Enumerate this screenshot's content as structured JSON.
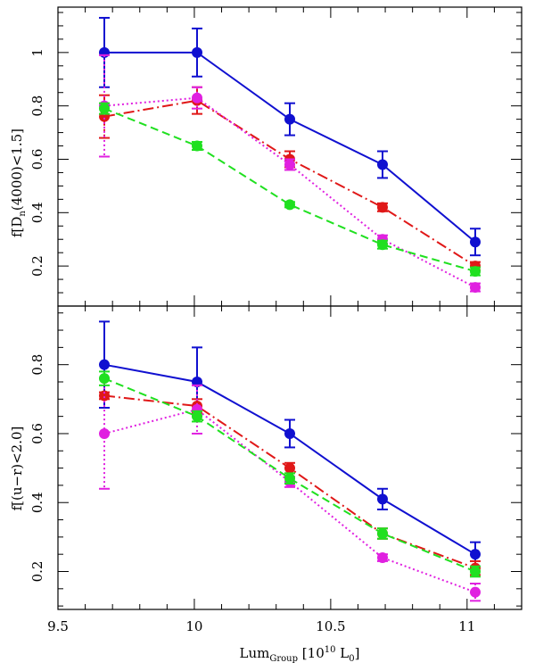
{
  "chart_data": [
    {
      "type": "line",
      "panel": "top",
      "ylabel": "f[D_n(4000)<1.5]",
      "xlim": [
        9.5,
        11.2
      ],
      "ylim": [
        0.05,
        1.17
      ],
      "yticks": [
        0.2,
        0.4,
        0.6,
        0.8,
        1
      ],
      "ytick_labels": [
        "0.2",
        "0.4",
        "0.6",
        "0.8",
        "1"
      ],
      "x": [
        9.67,
        10.01,
        10.35,
        10.69,
        11.03
      ],
      "series": [
        {
          "color": "#1010d0",
          "style": "solid",
          "values": [
            1.0,
            1.0,
            0.75,
            0.58,
            0.29
          ],
          "err": [
            0.13,
            0.09,
            0.06,
            0.05,
            0.05
          ]
        },
        {
          "color": "#e01818",
          "style": "dashdot",
          "values": [
            0.76,
            0.82,
            0.6,
            0.42,
            0.2
          ],
          "err": [
            0.08,
            0.05,
            0.03,
            0.015,
            0.015
          ]
        },
        {
          "color": "#e020e0",
          "style": "dotted",
          "values": [
            0.8,
            0.83,
            0.58,
            0.3,
            0.12
          ],
          "err": [
            0.19,
            0.04,
            0.02,
            0.015,
            0.015
          ]
        },
        {
          "color": "#20e020",
          "style": "dashed",
          "values": [
            0.79,
            0.65,
            0.43,
            0.28,
            0.18
          ],
          "err": [
            0.02,
            0.015,
            0.01,
            0.015,
            0.015
          ]
        }
      ]
    },
    {
      "type": "line",
      "panel": "bottom",
      "ylabel": "f[(u−r)<2.0]",
      "xlabel": "Lum_Group [10^10 L_0]",
      "xlim": [
        9.5,
        11.2
      ],
      "ylim": [
        0.09,
        0.97
      ],
      "xticks": [
        9.5,
        10,
        10.5,
        11
      ],
      "xtick_labels": [
        "9.5",
        "10",
        "10.5",
        "11"
      ],
      "yticks": [
        0.2,
        0.4,
        0.6,
        0.8
      ],
      "ytick_labels": [
        "0.2",
        "0.4",
        "0.6",
        "0.8"
      ],
      "x": [
        9.67,
        10.01,
        10.35,
        10.69,
        11.03
      ],
      "series": [
        {
          "color": "#1010d0",
          "style": "solid",
          "values": [
            0.8,
            0.75,
            0.6,
            0.41,
            0.25
          ],
          "err": [
            0.125,
            0.1,
            0.04,
            0.03,
            0.035
          ]
        },
        {
          "color": "#e01818",
          "style": "dashdot",
          "values": [
            0.71,
            0.68,
            0.5,
            0.31,
            0.21
          ],
          "err": [
            0.01,
            0.02,
            0.015,
            0.015,
            0.02
          ]
        },
        {
          "color": "#e020e0",
          "style": "dotted",
          "values": [
            0.6,
            0.67,
            0.46,
            0.24,
            0.14
          ],
          "err": [
            0.16,
            0.07,
            0.015,
            0.01,
            0.025
          ]
        },
        {
          "color": "#20e020",
          "style": "dashed",
          "values": [
            0.76,
            0.65,
            0.47,
            0.31,
            0.2
          ],
          "err": [
            0.02,
            0.015,
            0.015,
            0.015,
            0.015
          ]
        }
      ]
    }
  ]
}
